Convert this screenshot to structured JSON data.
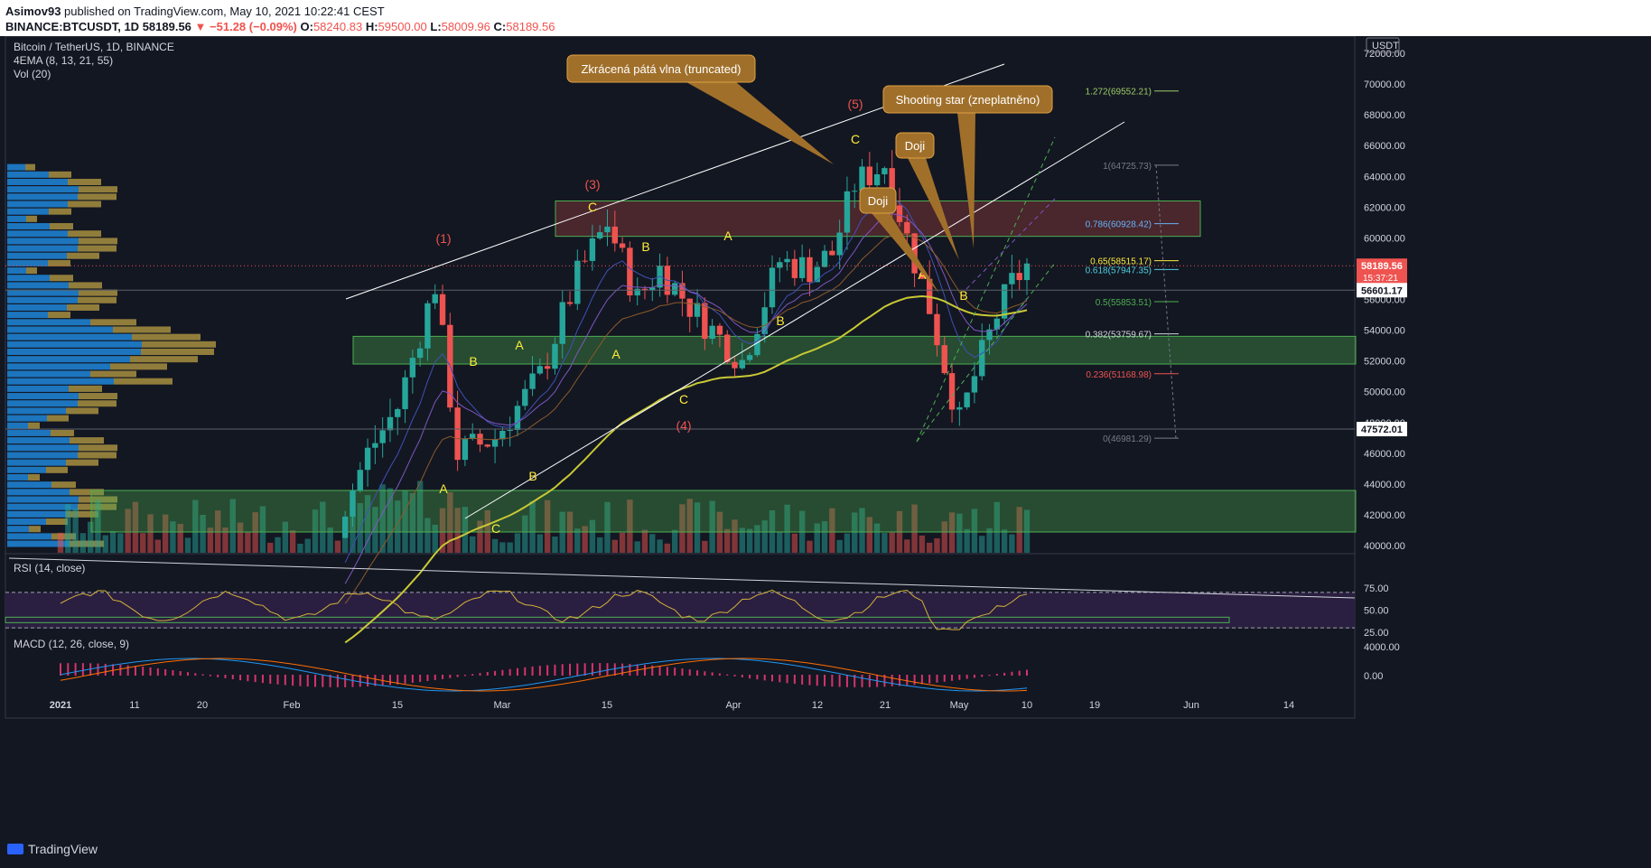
{
  "header": {
    "author": "Asimov93",
    "published_text": "published on TradingView.com, May 10, 2021 10:22:41 CEST",
    "symbol": "BINANCE:BTCUSDT, 1D",
    "last": "58189.56",
    "change": "▼ −51.28 (−0.09%)",
    "open": "58240.83",
    "high": "59500.00",
    "low": "58009.96",
    "close": "58189.56"
  },
  "legend": {
    "title": "Bitcoin / TetherUS, 1D, BINANCE",
    "ema": "4EMA (8, 13, 21, 55)",
    "vol": "Vol (20)",
    "rsi": "RSI (14, close)",
    "macd": "MACD (12, 26, close, 9)"
  },
  "currency": "USDT",
  "price_axis": [
    "72000.00",
    "70000.00",
    "68000.00",
    "66000.00",
    "64000.00",
    "62000.00",
    "60000.00",
    "58000.00",
    "56000.00",
    "54000.00",
    "52000.00",
    "50000.00",
    "48000.00",
    "46000.00",
    "44000.00",
    "42000.00",
    "40000.00"
  ],
  "price_tags": [
    {
      "text": "58189.56",
      "sub": "15:37:21",
      "color": "#ef5350",
      "price": 58189.56
    },
    {
      "text": "56601.17",
      "color": "#ffffff",
      "price": 56601.17
    },
    {
      "text": "47572.01",
      "color": "#ffffff",
      "price": 47572.01
    }
  ],
  "rsi_axis": [
    "75.00",
    "50.00",
    "25.00"
  ],
  "macd_axis": [
    "4000.00",
    "0.00"
  ],
  "time_axis": [
    "2021",
    "11",
    "20",
    "Feb",
    "15",
    "Mar",
    "15",
    "Apr",
    "12",
    "21",
    "May",
    "10",
    "19",
    "Jun",
    "14"
  ],
  "fib_levels": [
    {
      "label": "1.272(69552.21)",
      "price": 69552.21,
      "color": "#9ccc65"
    },
    {
      "label": "1(64725.73)",
      "price": 64725.73,
      "color": "#787b86"
    },
    {
      "label": "0.786(60928.42)",
      "price": 60928.42,
      "color": "#64b5f6"
    },
    {
      "label": "0.65(58515.17)",
      "price": 58515.17,
      "color": "#ffeb3b"
    },
    {
      "label": "0.618(57947.35)",
      "price": 57947.35,
      "color": "#4dd0e1"
    },
    {
      "label": "0.5(55853.51)",
      "price": 55853.51,
      "color": "#4caf50"
    },
    {
      "label": "0.382(53759.67)",
      "price": 53759.67,
      "color": "#d1d4dc"
    },
    {
      "label": "0.236(51168.98)",
      "price": 51168.98,
      "color": "#ef5350"
    },
    {
      "label": "0(46981.29)",
      "price": 46981.29,
      "color": "#787b86"
    }
  ],
  "wave_labels": [
    {
      "text": "(1)",
      "color": "#ef5350"
    },
    {
      "text": "(3)",
      "color": "#ef5350"
    },
    {
      "text": "(5)",
      "color": "#ef5350"
    },
    {
      "text": "(4)",
      "color": "#ef5350"
    },
    {
      "text": "A",
      "color": "#ffeb3b"
    },
    {
      "text": "B",
      "color": "#ffeb3b"
    },
    {
      "text": "C",
      "color": "#ffeb3b"
    }
  ],
  "callouts": [
    "Zkrácená pátá vlna (truncated)",
    "Shooting star (zneplatněno)",
    "Doji",
    "Doji"
  ],
  "footer": {
    "brand": "TradingView"
  },
  "colors": {
    "up": "#26a69a",
    "down": "#ef5350",
    "bg": "#131722",
    "callout": "#a0702b",
    "ema55": "#c9c934"
  }
}
